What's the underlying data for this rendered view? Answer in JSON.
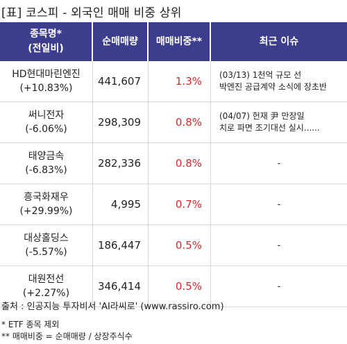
{
  "title": "[표] 코스피 - 외국인 매매 비중 상위",
  "headers": {
    "name": "종목명*\n(전일비)",
    "volume": "순매매량",
    "ratio": "매매비중**",
    "issue": "최근 이슈"
  },
  "rows": [
    {
      "name": "HD현대마린엔진",
      "change": "(+10.83%)",
      "volume": "441,607",
      "ratio": "1.3%",
      "issue": "(03/13) 1천억 규모 선\n박엔진 공급계약 소식에 장초반"
    },
    {
      "name": "써니전자",
      "change": "(-6.06%)",
      "volume": "298,309",
      "ratio": "0.8%",
      "issue": "(04/07) 헌재 尹 만장일\n치로 파면 조기대선 실시......"
    },
    {
      "name": "태양금속",
      "change": "(-6.83%)",
      "volume": "282,336",
      "ratio": "0.8%",
      "issue": "-"
    },
    {
      "name": "흥국화재우",
      "change": "(+29.99%)",
      "volume": "4,995",
      "ratio": "0.7%",
      "issue": "-"
    },
    {
      "name": "대상홀딩스",
      "change": "(-5.57%)",
      "volume": "186,447",
      "ratio": "0.5%",
      "issue": "-"
    },
    {
      "name": "대원전선",
      "change": "(+2.27%)",
      "volume": "346,414",
      "ratio": "0.5%",
      "issue": "-"
    }
  ],
  "source": "출처 : 인공지능 투자비서 'AI라씨로' (www.rassiro.com)",
  "notes": [
    "* ETF 종목 제외",
    "** 매매비중 = 순매매량 / 상장주식수"
  ],
  "colors": {
    "header_bg": "#3d3d8d",
    "header_text": "#ffffff",
    "ratio_text": "#d62a2a",
    "grid": "#d8d8d8"
  }
}
